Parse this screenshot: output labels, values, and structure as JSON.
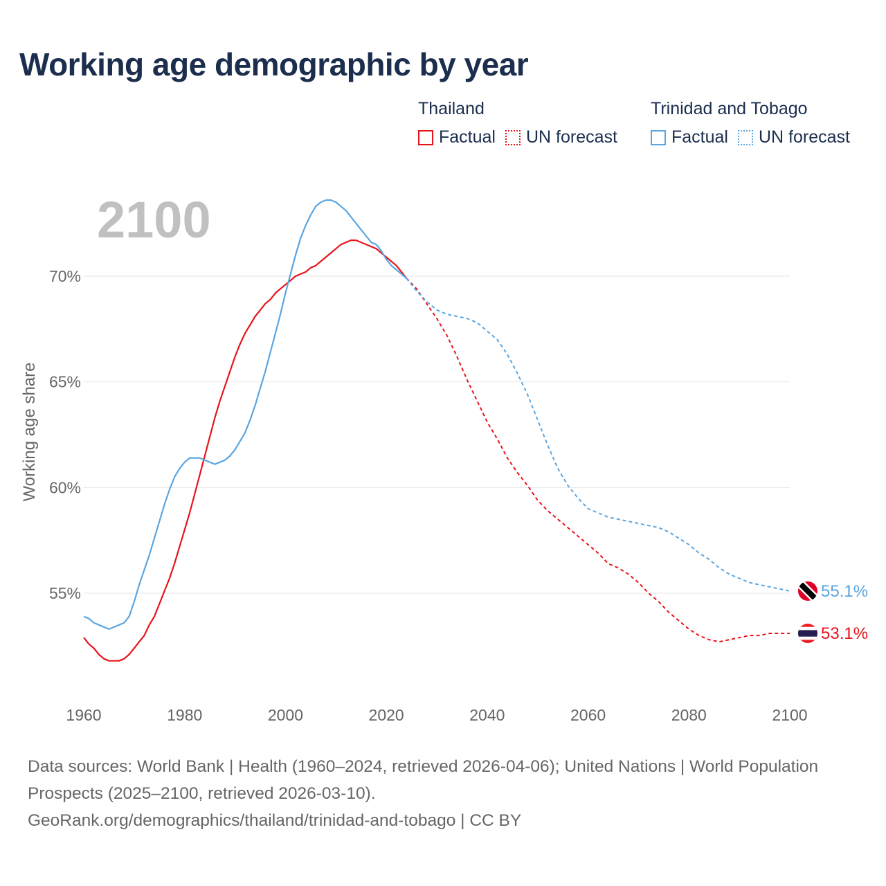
{
  "title": "Working age demographic by year",
  "legend": {
    "groups": [
      {
        "country": "Thailand",
        "color": "#e8131a",
        "factual_label": "Factual",
        "forecast_label": "UN forecast"
      },
      {
        "country": "Trinidad and Tobago",
        "color": "#5aa5e0",
        "factual_label": "Factual",
        "forecast_label": "UN forecast"
      }
    ]
  },
  "year_label": "2100",
  "chart_data": {
    "type": "line",
    "title": "Working age demographic by year",
    "xlabel": "",
    "ylabel": "Working age share",
    "xlim": [
      1960,
      2100
    ],
    "ylim": [
      51,
      74
    ],
    "x_ticks": [
      1960,
      1980,
      2000,
      2020,
      2040,
      2060,
      2080,
      2100
    ],
    "x_tick_labels": [
      "1960",
      "1980",
      "2000",
      "2020",
      "2040",
      "2060",
      "2080",
      "2100"
    ],
    "y_ticks": [
      55,
      60,
      65,
      70
    ],
    "y_tick_labels": [
      "55%",
      "60%",
      "65%",
      "70%"
    ],
    "factual_end_year": 2024,
    "series": [
      {
        "name": "Thailand",
        "color": "#e8131a",
        "end_label": "53.1%",
        "points": [
          [
            1960,
            52.9
          ],
          [
            1961,
            52.6
          ],
          [
            1962,
            52.4
          ],
          [
            1963,
            52.1
          ],
          [
            1964,
            51.9
          ],
          [
            1965,
            51.8
          ],
          [
            1966,
            51.8
          ],
          [
            1967,
            51.8
          ],
          [
            1968,
            51.9
          ],
          [
            1969,
            52.1
          ],
          [
            1970,
            52.4
          ],
          [
            1971,
            52.7
          ],
          [
            1972,
            53.0
          ],
          [
            1973,
            53.5
          ],
          [
            1974,
            53.9
          ],
          [
            1975,
            54.5
          ],
          [
            1976,
            55.1
          ],
          [
            1977,
            55.7
          ],
          [
            1978,
            56.4
          ],
          [
            1979,
            57.2
          ],
          [
            1980,
            58.0
          ],
          [
            1981,
            58.8
          ],
          [
            1982,
            59.7
          ],
          [
            1983,
            60.6
          ],
          [
            1984,
            61.5
          ],
          [
            1985,
            62.4
          ],
          [
            1986,
            63.3
          ],
          [
            1987,
            64.1
          ],
          [
            1988,
            64.8
          ],
          [
            1989,
            65.5
          ],
          [
            1990,
            66.2
          ],
          [
            1991,
            66.8
          ],
          [
            1992,
            67.3
          ],
          [
            1993,
            67.7
          ],
          [
            1994,
            68.1
          ],
          [
            1995,
            68.4
          ],
          [
            1996,
            68.7
          ],
          [
            1997,
            68.9
          ],
          [
            1998,
            69.2
          ],
          [
            1999,
            69.4
          ],
          [
            2000,
            69.6
          ],
          [
            2001,
            69.8
          ],
          [
            2002,
            70.0
          ],
          [
            2003,
            70.1
          ],
          [
            2004,
            70.2
          ],
          [
            2005,
            70.4
          ],
          [
            2006,
            70.5
          ],
          [
            2007,
            70.7
          ],
          [
            2008,
            70.9
          ],
          [
            2009,
            71.1
          ],
          [
            2010,
            71.3
          ],
          [
            2011,
            71.5
          ],
          [
            2012,
            71.6
          ],
          [
            2013,
            71.7
          ],
          [
            2014,
            71.7
          ],
          [
            2015,
            71.6
          ],
          [
            2016,
            71.5
          ],
          [
            2017,
            71.4
          ],
          [
            2018,
            71.3
          ],
          [
            2019,
            71.1
          ],
          [
            2020,
            70.9
          ],
          [
            2021,
            70.7
          ],
          [
            2022,
            70.5
          ],
          [
            2023,
            70.2
          ],
          [
            2024,
            69.9
          ],
          [
            2026,
            69.4
          ],
          [
            2028,
            68.7
          ],
          [
            2030,
            68.0
          ],
          [
            2032,
            67.2
          ],
          [
            2034,
            66.2
          ],
          [
            2036,
            65.1
          ],
          [
            2038,
            64.1
          ],
          [
            2040,
            63.1
          ],
          [
            2042,
            62.3
          ],
          [
            2044,
            61.4
          ],
          [
            2046,
            60.7
          ],
          [
            2048,
            60.1
          ],
          [
            2050,
            59.4
          ],
          [
            2052,
            58.9
          ],
          [
            2054,
            58.5
          ],
          [
            2056,
            58.1
          ],
          [
            2058,
            57.7
          ],
          [
            2060,
            57.3
          ],
          [
            2062,
            56.9
          ],
          [
            2064,
            56.4
          ],
          [
            2066,
            56.2
          ],
          [
            2068,
            55.9
          ],
          [
            2070,
            55.5
          ],
          [
            2072,
            55.0
          ],
          [
            2074,
            54.6
          ],
          [
            2076,
            54.1
          ],
          [
            2078,
            53.7
          ],
          [
            2080,
            53.3
          ],
          [
            2082,
            53.0
          ],
          [
            2084,
            52.8
          ],
          [
            2086,
            52.7
          ],
          [
            2088,
            52.8
          ],
          [
            2090,
            52.9
          ],
          [
            2092,
            53.0
          ],
          [
            2094,
            53.0
          ],
          [
            2096,
            53.1
          ],
          [
            2098,
            53.1
          ],
          [
            2100,
            53.1
          ]
        ]
      },
      {
        "name": "Trinidad and Tobago",
        "color": "#5aa5e0",
        "end_label": "55.1%",
        "points": [
          [
            1960,
            53.9
          ],
          [
            1961,
            53.8
          ],
          [
            1962,
            53.6
          ],
          [
            1963,
            53.5
          ],
          [
            1964,
            53.4
          ],
          [
            1965,
            53.3
          ],
          [
            1966,
            53.4
          ],
          [
            1967,
            53.5
          ],
          [
            1968,
            53.6
          ],
          [
            1969,
            53.9
          ],
          [
            1970,
            54.6
          ],
          [
            1971,
            55.4
          ],
          [
            1972,
            56.1
          ],
          [
            1973,
            56.8
          ],
          [
            1974,
            57.6
          ],
          [
            1975,
            58.4
          ],
          [
            1976,
            59.2
          ],
          [
            1977,
            59.9
          ],
          [
            1978,
            60.5
          ],
          [
            1979,
            60.9
          ],
          [
            1980,
            61.2
          ],
          [
            1981,
            61.4
          ],
          [
            1982,
            61.4
          ],
          [
            1983,
            61.4
          ],
          [
            1984,
            61.3
          ],
          [
            1985,
            61.2
          ],
          [
            1986,
            61.1
          ],
          [
            1987,
            61.2
          ],
          [
            1988,
            61.3
          ],
          [
            1989,
            61.5
          ],
          [
            1990,
            61.8
          ],
          [
            1991,
            62.2
          ],
          [
            1992,
            62.6
          ],
          [
            1993,
            63.2
          ],
          [
            1994,
            63.9
          ],
          [
            1995,
            64.7
          ],
          [
            1996,
            65.5
          ],
          [
            1997,
            66.4
          ],
          [
            1998,
            67.3
          ],
          [
            1999,
            68.2
          ],
          [
            2000,
            69.2
          ],
          [
            2001,
            70.1
          ],
          [
            2002,
            71.0
          ],
          [
            2003,
            71.8
          ],
          [
            2004,
            72.4
          ],
          [
            2005,
            72.9
          ],
          [
            2006,
            73.3
          ],
          [
            2007,
            73.5
          ],
          [
            2008,
            73.6
          ],
          [
            2009,
            73.6
          ],
          [
            2010,
            73.5
          ],
          [
            2011,
            73.3
          ],
          [
            2012,
            73.1
          ],
          [
            2013,
            72.8
          ],
          [
            2014,
            72.5
          ],
          [
            2015,
            72.2
          ],
          [
            2016,
            71.9
          ],
          [
            2017,
            71.6
          ],
          [
            2018,
            71.5
          ],
          [
            2019,
            71.2
          ],
          [
            2020,
            70.8
          ],
          [
            2021,
            70.5
          ],
          [
            2022,
            70.3
          ],
          [
            2023,
            70.1
          ],
          [
            2024,
            69.9
          ],
          [
            2026,
            69.3
          ],
          [
            2028,
            68.8
          ],
          [
            2030,
            68.4
          ],
          [
            2032,
            68.2
          ],
          [
            2034,
            68.1
          ],
          [
            2036,
            68.0
          ],
          [
            2038,
            67.8
          ],
          [
            2040,
            67.4
          ],
          [
            2042,
            67.0
          ],
          [
            2044,
            66.3
          ],
          [
            2046,
            65.4
          ],
          [
            2048,
            64.4
          ],
          [
            2050,
            63.2
          ],
          [
            2052,
            62.0
          ],
          [
            2054,
            60.9
          ],
          [
            2056,
            60.1
          ],
          [
            2058,
            59.5
          ],
          [
            2060,
            59.0
          ],
          [
            2062,
            58.8
          ],
          [
            2064,
            58.6
          ],
          [
            2066,
            58.5
          ],
          [
            2068,
            58.4
          ],
          [
            2070,
            58.3
          ],
          [
            2072,
            58.2
          ],
          [
            2074,
            58.1
          ],
          [
            2076,
            57.9
          ],
          [
            2078,
            57.6
          ],
          [
            2080,
            57.3
          ],
          [
            2082,
            56.9
          ],
          [
            2084,
            56.6
          ],
          [
            2086,
            56.2
          ],
          [
            2088,
            55.9
          ],
          [
            2090,
            55.7
          ],
          [
            2092,
            55.5
          ],
          [
            2094,
            55.4
          ],
          [
            2096,
            55.3
          ],
          [
            2098,
            55.2
          ],
          [
            2100,
            55.1
          ]
        ]
      }
    ]
  },
  "footer": {
    "line1": "Data sources: World Bank | Health (1960–2024, retrieved 2026-04-06); United Nations | World Population Prospects (2025–2100, retrieved 2026-03-10).",
    "line2": "GeoRank.org/demographics/thailand/trinidad-and-tobago | CC BY"
  }
}
